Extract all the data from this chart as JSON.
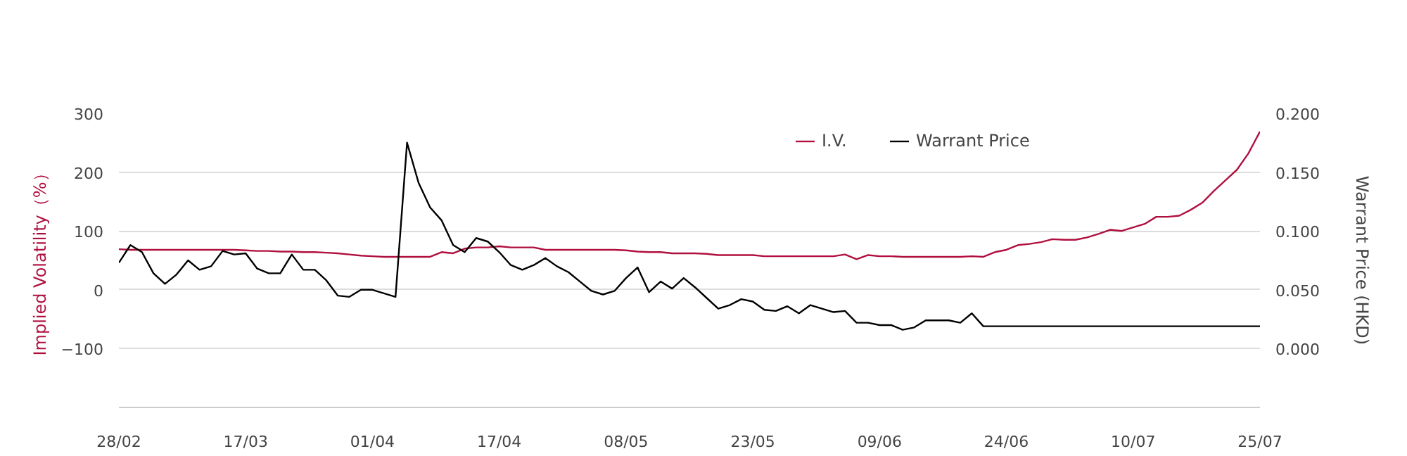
{
  "chart_data": {
    "type": "line",
    "categories": [
      "28/02",
      null,
      null,
      null,
      null,
      null,
      null,
      null,
      null,
      null,
      null,
      "17/03",
      null,
      null,
      null,
      null,
      null,
      null,
      null,
      null,
      null,
      null,
      "01/04",
      null,
      null,
      null,
      null,
      null,
      null,
      null,
      null,
      null,
      null,
      "17/04",
      null,
      null,
      null,
      null,
      null,
      null,
      null,
      null,
      null,
      null,
      "08/05",
      null,
      null,
      null,
      null,
      null,
      null,
      null,
      null,
      null,
      null,
      "23/05",
      null,
      null,
      null,
      null,
      null,
      null,
      null,
      null,
      null,
      null,
      "09/06",
      null,
      null,
      null,
      null,
      null,
      null,
      null,
      null,
      null,
      null,
      "24/06",
      null,
      null,
      null,
      null,
      null,
      null,
      null,
      null,
      null,
      null,
      "10/07",
      null,
      null,
      null,
      null,
      null,
      null,
      null,
      null,
      null,
      null,
      "25/07"
    ],
    "ylabel": "Implied Volatility（%）",
    "y2label": "Warrant Price (HKD)",
    "ylim": [
      -200,
      300
    ],
    "yticks": [
      -100,
      0,
      100,
      200,
      300
    ],
    "y2lim": [
      -0.05,
      0.2
    ],
    "y2ticks": [
      {
        "value": 0,
        "label": "0.000"
      },
      {
        "value": 0.05,
        "label": "0.050"
      },
      {
        "value": 0.1,
        "label": "0.100"
      },
      {
        "value": 0.15,
        "label": "0.150"
      },
      {
        "value": 0.2,
        "label": "0.200"
      }
    ],
    "grid": "y",
    "legend": "top right",
    "marker": "none",
    "line_style": "solid",
    "series": [
      {
        "name": "I.V.",
        "color": "#b0103f",
        "axis": "y",
        "values": [
          69,
          68,
          68,
          68,
          68,
          68,
          68,
          68,
          68,
          68,
          68,
          67,
          66,
          66,
          65,
          65,
          64,
          64,
          63,
          62,
          60,
          58,
          57,
          56,
          56,
          56,
          56,
          56,
          64,
          62,
          70,
          72,
          72,
          74,
          72,
          72,
          72,
          68,
          68,
          68,
          68,
          68,
          68,
          68,
          67,
          65,
          64,
          64,
          62,
          62,
          62,
          61,
          59,
          59,
          59,
          59,
          57,
          57,
          57,
          57,
          57,
          57,
          57,
          60,
          52,
          59,
          57,
          57,
          56,
          56,
          56,
          56,
          56,
          56,
          57,
          56,
          64,
          68,
          76,
          78,
          81,
          86,
          85,
          85,
          89,
          95,
          102,
          100,
          106,
          112,
          124,
          124,
          126,
          136,
          148,
          168,
          186,
          204,
          232,
          269
        ]
      },
      {
        "name": "Warrant Price",
        "color": "#000000",
        "axis": "y2",
        "values": [
          0.073,
          0.088,
          0.082,
          0.064,
          0.055,
          0.063,
          0.075,
          0.067,
          0.07,
          0.083,
          0.08,
          0.081,
          0.068,
          0.064,
          0.064,
          0.08,
          0.067,
          0.067,
          0.058,
          0.045,
          0.044,
          0.05,
          0.05,
          0.047,
          0.044,
          0.175,
          0.141,
          0.12,
          0.109,
          0.088,
          0.082,
          0.094,
          0.091,
          0.082,
          0.071,
          0.067,
          0.071,
          0.077,
          0.07,
          0.065,
          0.057,
          0.049,
          0.046,
          0.049,
          0.06,
          0.069,
          0.048,
          0.057,
          0.051,
          0.06,
          0.052,
          0.043,
          0.034,
          0.037,
          0.042,
          0.04,
          0.033,
          0.032,
          0.036,
          0.03,
          0.037,
          0.034,
          0.031,
          0.032,
          0.022,
          0.022,
          0.02,
          0.02,
          0.016,
          0.018,
          0.024,
          0.024,
          0.024,
          0.022,
          0.03,
          0.019,
          0.019,
          0.019,
          0.019,
          0.019,
          0.019,
          0.019,
          0.019,
          0.019,
          0.019,
          0.019,
          0.019,
          0.019,
          0.019,
          0.019,
          0.019,
          0.019,
          0.019,
          0.019,
          0.019,
          0.019,
          0.019,
          0.019,
          0.019,
          0.019
        ]
      }
    ]
  }
}
